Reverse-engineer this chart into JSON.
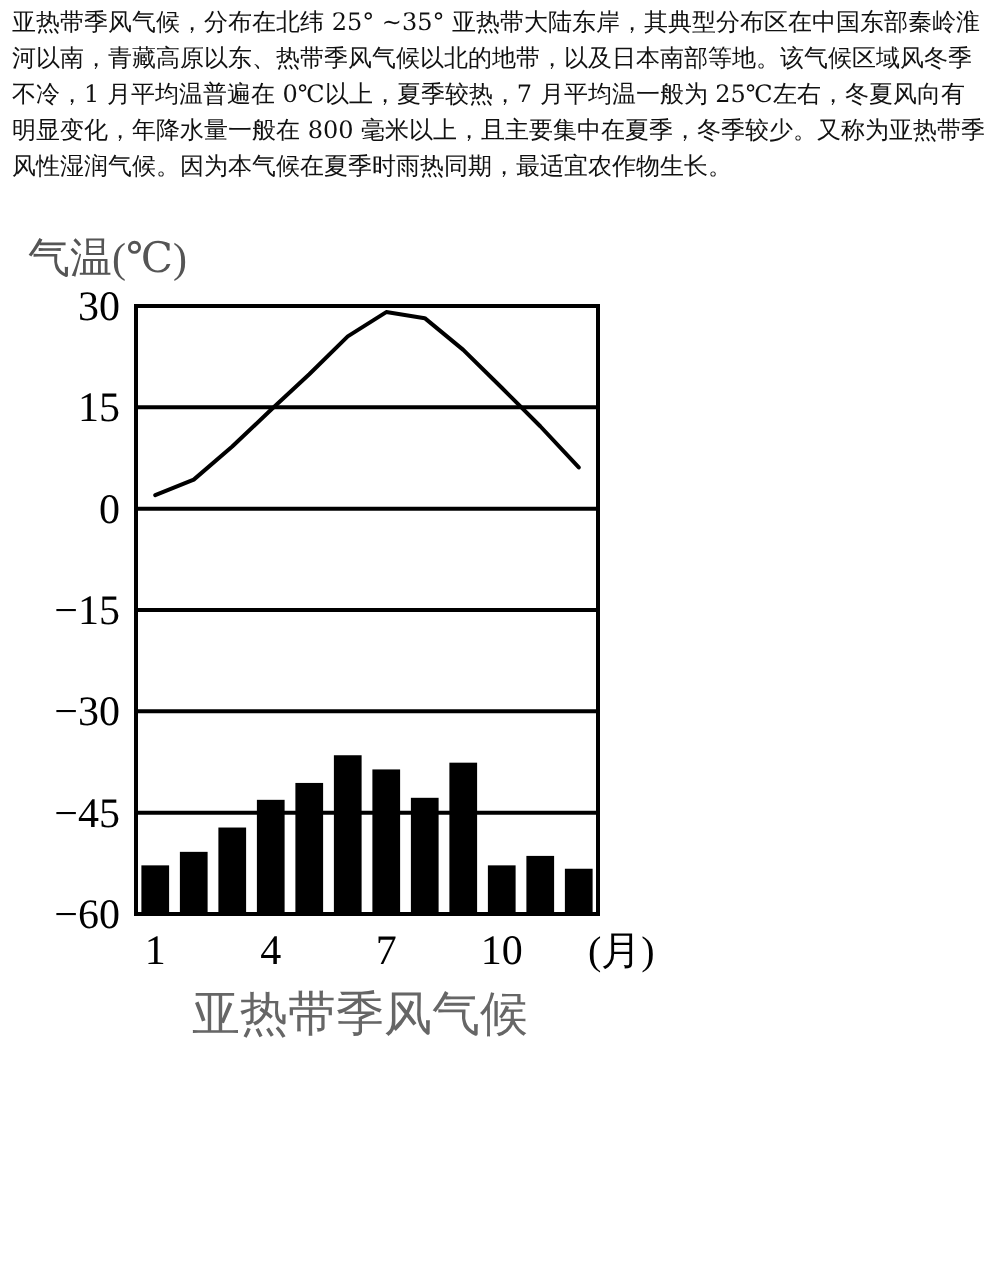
{
  "chart_data": {
    "type": "bar",
    "title": "亚热带季风气候，分布在北纬 25° ~35° 亚热带大陆东岸，其典型分布区在中国东部秦岭淮河以南，青藏高原以东、热带季风气候以北的地带，以及日本南部等地。该气候区域风冬季不冷，1 月平均温普遍在 0℃以上，夏季较热，7 月平均温一般为 25℃左右，冬夏风向有明显变化，年降水量一般在 800 毫米以上，且主要集中在夏季，冬季较少。又称为亚热带季风性湿润气候。因为本气候在夏季时雨热同期，最适宜农作物生长。",
    "ylabel": "气温(℃)",
    "xlabel": "(月)",
    "annotations": [
      "亚热带季风气候"
    ],
    "categories": [
      "1",
      null,
      null,
      "4",
      null,
      null,
      "7",
      null,
      null,
      "10",
      null,
      null
    ],
    "ylim": [
      -60,
      30
    ],
    "yticks": [
      -60,
      -45,
      -30,
      -15,
      0,
      15,
      30
    ],
    "grid": "y",
    "series": [
      {
        "color": "#000000",
        "base": [
          -60,
          -60,
          -60,
          -60,
          -60,
          -60,
          -60,
          -60,
          -60,
          -60,
          -60,
          -60
        ],
        "values": [
          7.2,
          9.2,
          12.8,
          16.9,
          19.4,
          23.5,
          21.4,
          17.2,
          22.4,
          7.2,
          8.6,
          6.7
        ]
      },
      {
        "type": "line",
        "color": "#000000",
        "values": [
          2.0,
          4.3,
          9.2,
          14.6,
          19.9,
          25.5,
          29.1,
          28.2,
          23.5,
          17.9,
          12.2,
          6.1
        ]
      }
    ]
  }
}
